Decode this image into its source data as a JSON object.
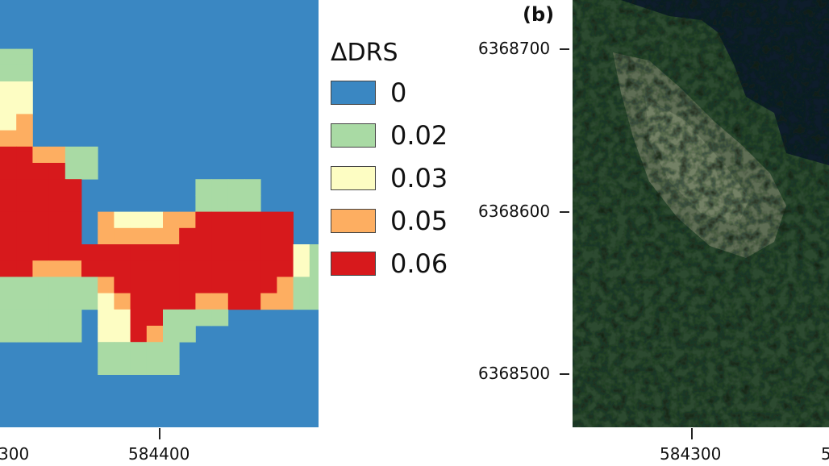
{
  "chart_data": {
    "type": "heatmap",
    "legend_title": "ΔDRS",
    "legend": [
      {
        "label": "0",
        "value": 0,
        "color": "#3a87c2"
      },
      {
        "label": "0.02",
        "value": 0.02,
        "color": "#a9daa4"
      },
      {
        "label": "0.03",
        "value": 0.03,
        "color": "#fdfdc3"
      },
      {
        "label": "0.05",
        "value": 0.05,
        "color": "#fdae61"
      },
      {
        "label": "0.06",
        "value": 0.06,
        "color": "#d7191c"
      }
    ],
    "x_ticks": [
      "300",
      "584400"
    ],
    "grid": [
      [
        0,
        0,
        0,
        0,
        0,
        0,
        0,
        0,
        0,
        0,
        0,
        0,
        0,
        0,
        0,
        0,
        0,
        0,
        0,
        0
      ],
      [
        0,
        0,
        0,
        0,
        0,
        0,
        0,
        0,
        0,
        0,
        0,
        0,
        0,
        0,
        0,
        0,
        0,
        0,
        0,
        0
      ],
      [
        0,
        0,
        0,
        0,
        0,
        0,
        0,
        0,
        0,
        0,
        0,
        0,
        0,
        0,
        0,
        0,
        0,
        0,
        0,
        0
      ],
      [
        2,
        2,
        0,
        0,
        0,
        0,
        0,
        0,
        0,
        0,
        0,
        0,
        0,
        0,
        0,
        0,
        0,
        0,
        0,
        0
      ],
      [
        2,
        2,
        0,
        0,
        0,
        0,
        0,
        0,
        0,
        0,
        0,
        0,
        0,
        0,
        0,
        0,
        0,
        0,
        0,
        0
      ],
      [
        3,
        3,
        0,
        0,
        0,
        0,
        0,
        0,
        0,
        0,
        0,
        0,
        0,
        0,
        0,
        0,
        0,
        0,
        0,
        0
      ],
      [
        3,
        3,
        0,
        0,
        0,
        0,
        0,
        0,
        0,
        0,
        0,
        0,
        0,
        0,
        0,
        0,
        0,
        0,
        0,
        0
      ],
      [
        3,
        4,
        0,
        0,
        0,
        0,
        0,
        0,
        0,
        0,
        0,
        0,
        0,
        0,
        0,
        0,
        0,
        0,
        0,
        0
      ],
      [
        4,
        4,
        0,
        0,
        0,
        0,
        0,
        0,
        0,
        0,
        0,
        0,
        0,
        0,
        0,
        0,
        0,
        0,
        0,
        0
      ],
      [
        6,
        6,
        4,
        4,
        2,
        2,
        0,
        0,
        0,
        0,
        0,
        0,
        0,
        0,
        0,
        0,
        0,
        0,
        0,
        0
      ],
      [
        6,
        6,
        6,
        6,
        2,
        2,
        0,
        0,
        0,
        0,
        0,
        0,
        0,
        0,
        0,
        0,
        0,
        0,
        0,
        0
      ],
      [
        6,
        6,
        6,
        6,
        6,
        0,
        0,
        0,
        0,
        0,
        0,
        0,
        2,
        2,
        2,
        2,
        0,
        0,
        0,
        0
      ],
      [
        6,
        6,
        6,
        6,
        6,
        0,
        0,
        0,
        0,
        0,
        0,
        0,
        2,
        2,
        2,
        2,
        0,
        0,
        0,
        0
      ],
      [
        6,
        6,
        6,
        6,
        6,
        0,
        4,
        3,
        3,
        3,
        4,
        4,
        6,
        6,
        6,
        6,
        6,
        6,
        0,
        0
      ],
      [
        6,
        6,
        6,
        6,
        6,
        0,
        4,
        4,
        4,
        4,
        4,
        6,
        6,
        6,
        6,
        6,
        6,
        6,
        0,
        0
      ],
      [
        6,
        6,
        6,
        6,
        6,
        6,
        6,
        6,
        6,
        6,
        6,
        6,
        6,
        6,
        6,
        6,
        6,
        6,
        3,
        2
      ],
      [
        6,
        6,
        4,
        4,
        4,
        6,
        6,
        6,
        6,
        6,
        6,
        6,
        6,
        6,
        6,
        6,
        6,
        6,
        3,
        2
      ],
      [
        2,
        2,
        2,
        2,
        2,
        2,
        4,
        6,
        6,
        6,
        6,
        6,
        6,
        6,
        6,
        6,
        6,
        4,
        2,
        2
      ],
      [
        2,
        2,
        2,
        2,
        2,
        2,
        3,
        4,
        6,
        6,
        6,
        6,
        4,
        4,
        6,
        6,
        4,
        4,
        2,
        2
      ],
      [
        2,
        2,
        2,
        2,
        2,
        0,
        3,
        3,
        6,
        6,
        2,
        2,
        2,
        2,
        0,
        0,
        0,
        0,
        0,
        0
      ],
      [
        2,
        2,
        2,
        2,
        2,
        0,
        3,
        3,
        6,
        4,
        2,
        2,
        0,
        0,
        0,
        0,
        0,
        0,
        0,
        0
      ],
      [
        0,
        0,
        0,
        0,
        0,
        0,
        2,
        2,
        2,
        2,
        2,
        0,
        0,
        0,
        0,
        0,
        0,
        0,
        0,
        0
      ],
      [
        0,
        0,
        0,
        0,
        0,
        0,
        2,
        2,
        2,
        2,
        2,
        0,
        0,
        0,
        0,
        0,
        0,
        0,
        0,
        0
      ],
      [
        0,
        0,
        0,
        0,
        0,
        0,
        0,
        0,
        0,
        0,
        0,
        0,
        0,
        0,
        0,
        0,
        0,
        0,
        0,
        0
      ],
      [
        0,
        0,
        0,
        0,
        0,
        0,
        0,
        0,
        0,
        0,
        0,
        0,
        0,
        0,
        0,
        0,
        0,
        0,
        0,
        0
      ],
      [
        0,
        0,
        0,
        0,
        0,
        0,
        0,
        0,
        0,
        0,
        0,
        0,
        0,
        0,
        0,
        0,
        0,
        0,
        0,
        0
      ]
    ]
  },
  "panel_b": {
    "label": "(b)",
    "y_ticks": [
      "6368700",
      "6368600",
      "6368500"
    ],
    "x_ticks": [
      "584300",
      "5"
    ]
  }
}
